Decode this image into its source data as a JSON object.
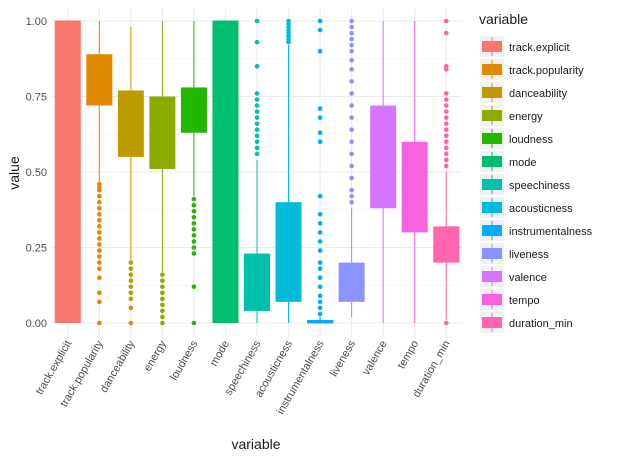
{
  "chart_data": {
    "type": "boxplot",
    "xlabel": "variable",
    "ylabel": "value",
    "ylim": [
      0,
      1
    ],
    "yticks": [
      0.0,
      0.25,
      0.5,
      0.75,
      1.0
    ],
    "ytick_labels": [
      "0.00",
      "0.25",
      "0.50",
      "0.75",
      "1.00"
    ],
    "grid": true,
    "legend": {
      "title": "variable",
      "placement": "right",
      "entries": [
        "track.explicit",
        "track.popularity",
        "danceability",
        "energy",
        "loudness",
        "mode",
        "speechiness",
        "acousticness",
        "instrumentalness",
        "liveness",
        "valence",
        "tempo",
        "duration_min"
      ]
    },
    "categories": [
      "track.explicit",
      "track.popularity",
      "danceability",
      "energy",
      "loudness",
      "mode",
      "speechiness",
      "acousticness",
      "instrumentalness",
      "liveness",
      "valence",
      "tempo",
      "duration_min"
    ],
    "colors": [
      "#F8766D",
      "#E18A00",
      "#BE9C00",
      "#8CAB00",
      "#24B700",
      "#00BE70",
      "#00C1AB",
      "#00BBDA",
      "#00ACFC",
      "#8B93FF",
      "#D575FE",
      "#F962DD",
      "#FF65AC"
    ],
    "series": [
      {
        "category": "track.explicit",
        "min": 0.0,
        "q1": 0.0,
        "median": 1.0,
        "q3": 1.0,
        "max": 1.0,
        "outliers": []
      },
      {
        "category": "track.popularity",
        "min": 0.47,
        "q1": 0.72,
        "median": 0.81,
        "q3": 0.89,
        "max": 1.0,
        "outliers": [
          0.46,
          0.45,
          0.44,
          0.42,
          0.4,
          0.38,
          0.36,
          0.34,
          0.32,
          0.3,
          0.28,
          0.26,
          0.24,
          0.22,
          0.2,
          0.18,
          0.15,
          0.1,
          0.07,
          0.0
        ]
      },
      {
        "category": "danceability",
        "min": 0.21,
        "q1": 0.55,
        "median": 0.65,
        "q3": 0.77,
        "max": 0.98,
        "outliers": [
          0.2,
          0.18,
          0.16,
          0.14,
          0.12,
          0.1,
          0.08,
          0.05,
          0.0
        ]
      },
      {
        "category": "energy",
        "min": 0.17,
        "q1": 0.51,
        "median": 0.62,
        "q3": 0.75,
        "max": 1.0,
        "outliers": [
          0.16,
          0.14,
          0.12,
          0.1,
          0.08,
          0.06,
          0.04,
          0.02,
          0.0
        ]
      },
      {
        "category": "loudness",
        "min": 0.42,
        "q1": 0.63,
        "median": 0.71,
        "q3": 0.78,
        "max": 1.0,
        "outliers": [
          0.41,
          0.39,
          0.37,
          0.35,
          0.33,
          0.31,
          0.29,
          0.27,
          0.25,
          0.23,
          0.12,
          0.0
        ]
      },
      {
        "category": "mode",
        "min": 0.0,
        "q1": 0.0,
        "median": 1.0,
        "q3": 1.0,
        "max": 1.0,
        "outliers": []
      },
      {
        "category": "speechiness",
        "min": 0.0,
        "q1": 0.04,
        "median": 0.1,
        "q3": 0.23,
        "max": 0.54,
        "outliers": [
          1.0,
          0.93,
          0.85,
          0.76,
          0.74,
          0.72,
          0.7,
          0.68,
          0.66,
          0.64,
          0.62,
          0.6,
          0.58,
          0.56
        ]
      },
      {
        "category": "acousticness",
        "min": 0.0,
        "q1": 0.07,
        "median": 0.2,
        "q3": 0.4,
        "max": 0.92,
        "outliers": [
          1.0,
          0.99,
          0.98,
          0.97,
          0.96,
          0.95,
          0.94,
          0.93
        ]
      },
      {
        "category": "instrumentalness",
        "min": 0.0,
        "q1": 0.0,
        "median": 0.0,
        "q3": 0.01,
        "max": 0.02,
        "outliers": [
          1.0,
          0.97,
          0.9,
          0.71,
          0.68,
          0.63,
          0.6,
          0.42,
          0.36,
          0.33,
          0.3,
          0.27,
          0.24,
          0.2,
          0.18,
          0.15,
          0.12,
          0.09,
          0.07,
          0.05,
          0.03
        ]
      },
      {
        "category": "liveness",
        "min": 0.02,
        "q1": 0.07,
        "median": 0.13,
        "q3": 0.2,
        "max": 0.38,
        "outliers": [
          1.0,
          0.98,
          0.96,
          0.94,
          0.92,
          0.9,
          0.87,
          0.84,
          0.8,
          0.76,
          0.72,
          0.68,
          0.64,
          0.6,
          0.56,
          0.52,
          0.48,
          0.44,
          0.42,
          0.4
        ]
      },
      {
        "category": "valence",
        "min": 0.0,
        "q1": 0.38,
        "median": 0.55,
        "q3": 0.72,
        "max": 1.0,
        "outliers": []
      },
      {
        "category": "tempo",
        "min": 0.0,
        "q1": 0.3,
        "median": 0.46,
        "q3": 0.6,
        "max": 1.0,
        "outliers": []
      },
      {
        "category": "duration_min",
        "min": 0.01,
        "q1": 0.2,
        "median": 0.25,
        "q3": 0.32,
        "max": 0.5,
        "outliers": [
          1.0,
          0.96,
          0.85,
          0.84,
          0.76,
          0.74,
          0.72,
          0.7,
          0.68,
          0.66,
          0.64,
          0.62,
          0.6,
          0.58,
          0.56,
          0.54,
          0.52,
          0.0
        ]
      }
    ]
  }
}
